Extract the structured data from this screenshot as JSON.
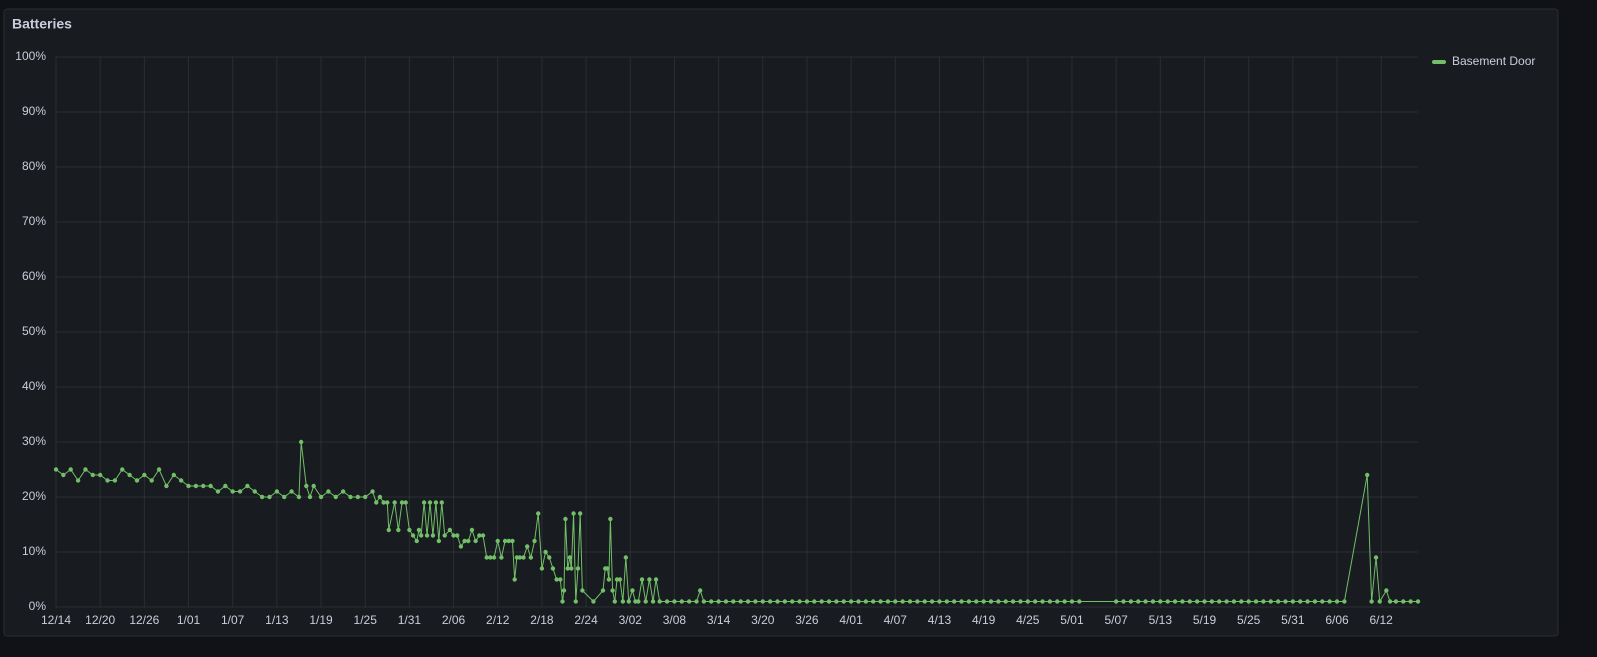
{
  "chart_data": {
    "type": "line",
    "title": "Batteries",
    "x": [
      0,
      1,
      2,
      3,
      4,
      5,
      6,
      7,
      8,
      9,
      10,
      11,
      12,
      13,
      14,
      15,
      16,
      17,
      18,
      19,
      20,
      21,
      22,
      23,
      24,
      25,
      26,
      27,
      28,
      29,
      30,
      31,
      32,
      33,
      33.3,
      34,
      34.5,
      35,
      36,
      37,
      38,
      39,
      40,
      41,
      42,
      43,
      43.5,
      44,
      44.5,
      45,
      45.2,
      46,
      46.5,
      47,
      47.5,
      48,
      48.5,
      49,
      49.3,
      49.6,
      50,
      50.4,
      50.8,
      51.2,
      51.6,
      52,
      52.4,
      52.8,
      53.5,
      54,
      54.5,
      55,
      55.5,
      56,
      56.5,
      57,
      57.5,
      58,
      58.5,
      59,
      59.5,
      60,
      60.5,
      61,
      61.5,
      62,
      62.3,
      62.6,
      63,
      63.5,
      64,
      64.5,
      65,
      65.5,
      66,
      66.5,
      67,
      67.5,
      68,
      68.5,
      68.8,
      69,
      69.2,
      69.5,
      69.8,
      70,
      70.3,
      70.6,
      70.9,
      71.2,
      71.5,
      73,
      74.3,
      74.6,
      74.9,
      75.1,
      75.3,
      75.6,
      75.9,
      76.2,
      76.6,
      77,
      77.4,
      77.8,
      78.3,
      78.7,
      79.1,
      79.6,
      80.1,
      80.6,
      81.1,
      81.5,
      82,
      83,
      84,
      85,
      86,
      87,
      87.5,
      88,
      89,
      90,
      91,
      92,
      93,
      94,
      95,
      96,
      97,
      98,
      99,
      100,
      101,
      102,
      103,
      104,
      105,
      106,
      107,
      108,
      109,
      110,
      111,
      112,
      113,
      114,
      115,
      116,
      117,
      118,
      119,
      120,
      121,
      122,
      123,
      124,
      125,
      126,
      127,
      128,
      129,
      130,
      131,
      132,
      133,
      134,
      135,
      136,
      137,
      138,
      139,
      144,
      145,
      146,
      147,
      148,
      149,
      150,
      151,
      152,
      153,
      154,
      155,
      156,
      157,
      158,
      159,
      160,
      161,
      162,
      163,
      164,
      165,
      166,
      167,
      168,
      169,
      170,
      171,
      172,
      173,
      174,
      175,
      178.1,
      178.7,
      179.3,
      179.8,
      180.7,
      181.2,
      182,
      183,
      184,
      185
    ],
    "series": [
      {
        "name": "Basement Door",
        "color": "#73bf69",
        "values": [
          25,
          24,
          25,
          23,
          25,
          24,
          24,
          23,
          23,
          25,
          24,
          23,
          24,
          23,
          25,
          22,
          24,
          23,
          22,
          22,
          22,
          22,
          21,
          22,
          21,
          21,
          22,
          21,
          20,
          20,
          21,
          20,
          21,
          20,
          30,
          22,
          20,
          22,
          20,
          21,
          20,
          21,
          20,
          20,
          20,
          21,
          19,
          20,
          19,
          19,
          14,
          19,
          14,
          19,
          19,
          14,
          13,
          12,
          14,
          13,
          19,
          13,
          19,
          13,
          19,
          12,
          19,
          13,
          14,
          13,
          13,
          11,
          12,
          12,
          14,
          12,
          13,
          13,
          9,
          9,
          9,
          12,
          9,
          12,
          12,
          12,
          5,
          9,
          9,
          9,
          11,
          9,
          12,
          17,
          7,
          10,
          9,
          7,
          5,
          5,
          1,
          3,
          16,
          7,
          9,
          7,
          17,
          1,
          7,
          17,
          3,
          1,
          3,
          7,
          7,
          5,
          16,
          3,
          1,
          5,
          5,
          1,
          9,
          1,
          3,
          1,
          1,
          5,
          1,
          5,
          1,
          5,
          1,
          1,
          1,
          1,
          1,
          1,
          3,
          1,
          1,
          1,
          1,
          1,
          1,
          1,
          1,
          1,
          1,
          1,
          1,
          1,
          1,
          1,
          1,
          1,
          1,
          1,
          1,
          1,
          1,
          1,
          1,
          1,
          1,
          1,
          1,
          1,
          1,
          1,
          1,
          1,
          1,
          1,
          1,
          1,
          1,
          1,
          1,
          1,
          1,
          1,
          1,
          1,
          1,
          1,
          1,
          1,
          1,
          1,
          1,
          1,
          1,
          1,
          1,
          1,
          1,
          1,
          1,
          1,
          1,
          1,
          1,
          1,
          1,
          1,
          1,
          1,
          1,
          1,
          1,
          1,
          1,
          1,
          1,
          1,
          1,
          1,
          1,
          1,
          1,
          1,
          1,
          24,
          1,
          9,
          1,
          3,
          1,
          1,
          1,
          1,
          1
        ]
      }
    ],
    "xlim": [
      0,
      185
    ],
    "xticks": [
      {
        "value": 0,
        "label": "12/14"
      },
      {
        "value": 6,
        "label": "12/20"
      },
      {
        "value": 12,
        "label": "12/26"
      },
      {
        "value": 18,
        "label": "1/01"
      },
      {
        "value": 24,
        "label": "1/07"
      },
      {
        "value": 30,
        "label": "1/13"
      },
      {
        "value": 36,
        "label": "1/19"
      },
      {
        "value": 42,
        "label": "1/25"
      },
      {
        "value": 48,
        "label": "1/31"
      },
      {
        "value": 54,
        "label": "2/06"
      },
      {
        "value": 60,
        "label": "2/12"
      },
      {
        "value": 66,
        "label": "2/18"
      },
      {
        "value": 72,
        "label": "2/24"
      },
      {
        "value": 78,
        "label": "3/02"
      },
      {
        "value": 84,
        "label": "3/08"
      },
      {
        "value": 90,
        "label": "3/14"
      },
      {
        "value": 96,
        "label": "3/20"
      },
      {
        "value": 102,
        "label": "3/26"
      },
      {
        "value": 108,
        "label": "4/01"
      },
      {
        "value": 114,
        "label": "4/07"
      },
      {
        "value": 120,
        "label": "4/13"
      },
      {
        "value": 126,
        "label": "4/19"
      },
      {
        "value": 132,
        "label": "4/25"
      },
      {
        "value": 138,
        "label": "5/01"
      },
      {
        "value": 144,
        "label": "5/07"
      },
      {
        "value": 150,
        "label": "5/13"
      },
      {
        "value": 156,
        "label": "5/19"
      },
      {
        "value": 162,
        "label": "5/25"
      },
      {
        "value": 168,
        "label": "5/31"
      },
      {
        "value": 174,
        "label": "6/06"
      },
      {
        "value": 180,
        "label": "6/12"
      }
    ],
    "ylim": [
      0,
      100
    ],
    "yticks": [
      {
        "value": 0,
        "label": "0%"
      },
      {
        "value": 10,
        "label": "10%"
      },
      {
        "value": 20,
        "label": "20%"
      },
      {
        "value": 30,
        "label": "30%"
      },
      {
        "value": 40,
        "label": "40%"
      },
      {
        "value": 50,
        "label": "50%"
      },
      {
        "value": 60,
        "label": "60%"
      },
      {
        "value": 70,
        "label": "70%"
      },
      {
        "value": 80,
        "label": "80%"
      },
      {
        "value": 90,
        "label": "90%"
      },
      {
        "value": 100,
        "label": "100%"
      }
    ],
    "grid": true,
    "legend": "right"
  }
}
